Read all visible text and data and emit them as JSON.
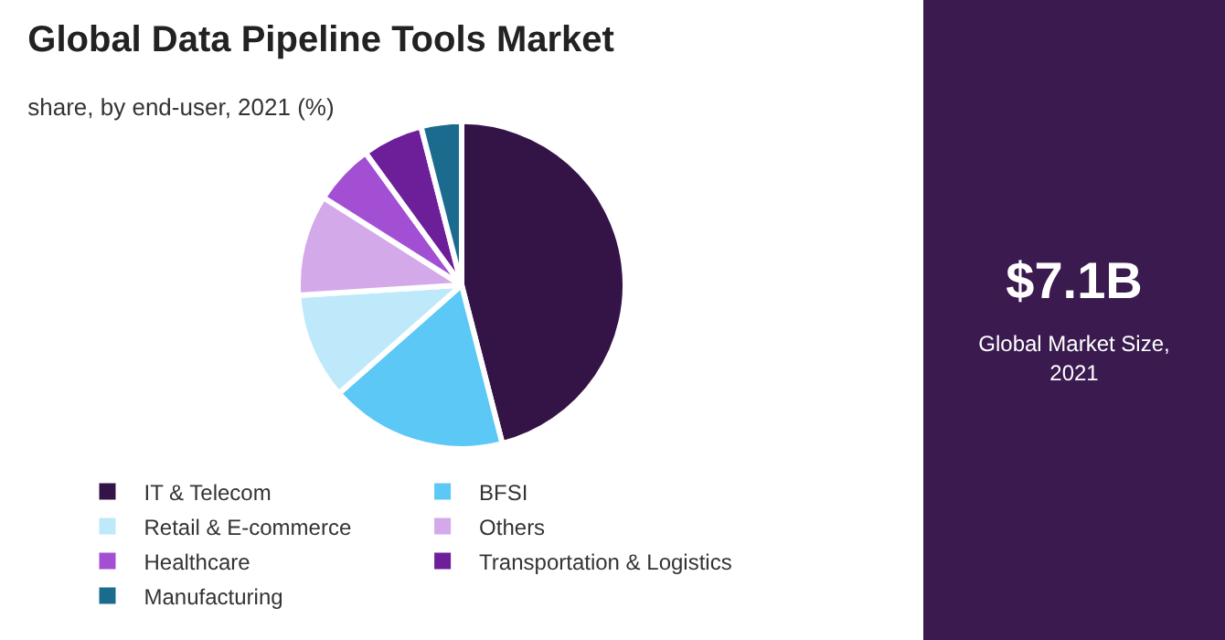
{
  "chart_data": {
    "type": "pie",
    "title": "Global Data Pipeline Tools Market",
    "subtitle": "share, by end-user, 2021 (%)",
    "categories": [
      "IT & Telecom",
      "BFSI",
      "Retail & E-commerce",
      "Others",
      "Healthcare",
      "Transportation & Logistics",
      "Manufacturing"
    ],
    "values": [
      46,
      17.5,
      10.5,
      10,
      6,
      6,
      4
    ],
    "colors": [
      "#341347",
      "#5bc8f5",
      "#bde9fa",
      "#d4a9ea",
      "#a34fd4",
      "#6d1f9a",
      "#1a6b8e"
    ],
    "legend": "bottom",
    "annotations": [
      "$7.1B",
      "Global Market Size, 2021"
    ]
  }
}
